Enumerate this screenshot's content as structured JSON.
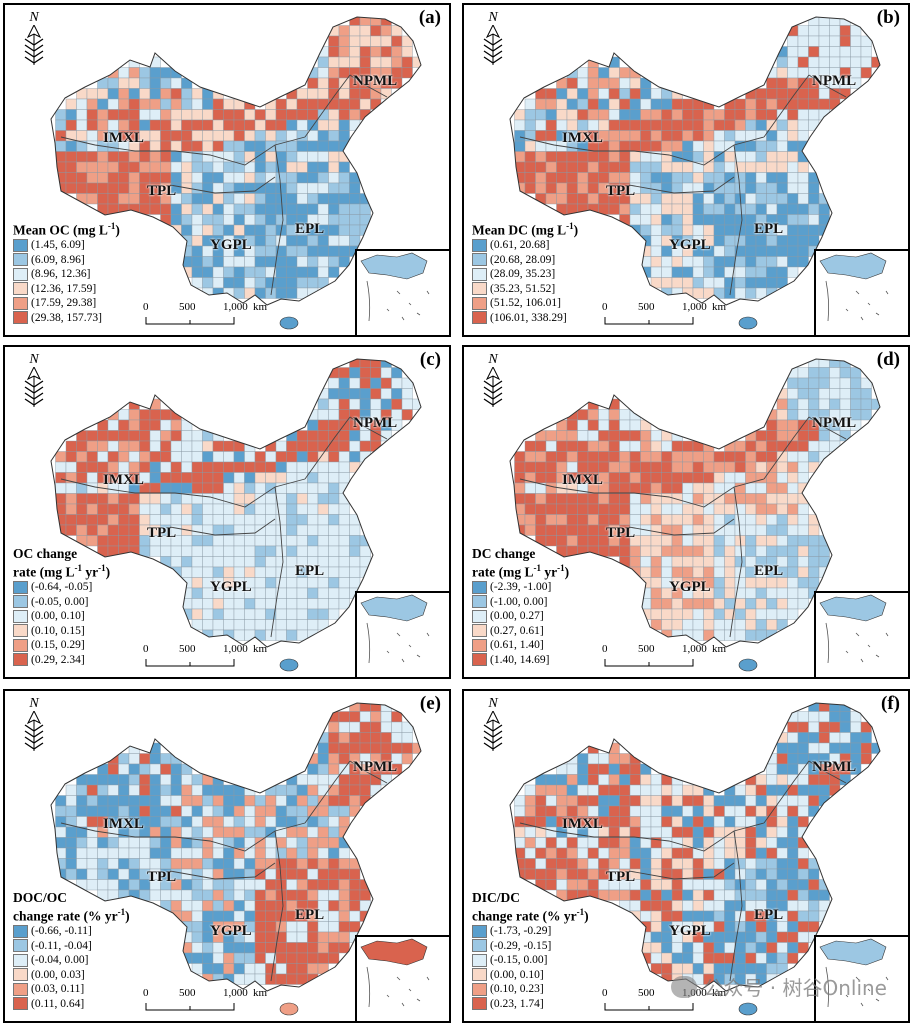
{
  "colors": {
    "blue_dark": "#5a9fcd",
    "blue_mid": "#9cc7e3",
    "blue_light": "#deeef7",
    "red_light": "#f9d9c8",
    "red_mid": "#ef9f86",
    "red_dark": "#d9634e",
    "boundary": "#333333"
  },
  "north_symbol": {
    "letter": "N",
    "icon": "north-arrow-icon"
  },
  "scale_bar": {
    "ticks": [
      "0",
      "500",
      "1,000"
    ],
    "unit": "km"
  },
  "regions": [
    "IMXL",
    "NPML",
    "TPL",
    "YGPL",
    "EPL"
  ],
  "panels": [
    {
      "id": "a",
      "label": "(a)",
      "legend_title": [
        "Mean OC (mg L",
        "-1",
        ")"
      ],
      "classes": [
        "(1.45, 6.09]",
        "(6.09, 8.96]",
        "(8.96, 12.36]",
        "(12.36, 17.59]",
        "(17.59, 29.38]",
        "(29.38, 157.73]"
      ]
    },
    {
      "id": "b",
      "label": "(b)",
      "legend_title": [
        "Mean DC (mg L",
        "-1",
        ")"
      ],
      "classes": [
        "(0.61, 20.68]",
        "(20.68, 28.09]",
        "(28.09, 35.23]",
        "(35.23, 51.52]",
        "(51.52, 106.01]",
        "(106.01, 338.29]"
      ]
    },
    {
      "id": "c",
      "label": "(c)",
      "legend_title": [
        "OC change",
        "rate (mg L",
        "-1",
        " yr",
        "-1",
        ")"
      ],
      "classes": [
        "(-0.64, -0.05]",
        "(-0.05, 0.00]",
        "(0.00, 0.10]",
        "(0.10, 0.15]",
        "(0.15, 0.29]",
        "(0.29, 2.34]"
      ]
    },
    {
      "id": "d",
      "label": "(d)",
      "legend_title": [
        "DC change",
        "rate (mg L",
        "-1",
        " yr",
        "-1",
        ")"
      ],
      "classes": [
        "(-2.39, -1.00]",
        "(-1.00, 0.00]",
        "(0.00, 0.27]",
        "(0.27, 0.61]",
        "(0.61, 1.40]",
        "(1.40, 14.69]"
      ]
    },
    {
      "id": "e",
      "label": "(e)",
      "legend_title": [
        "DOC/OC",
        "change rate (% yr",
        "-1",
        ")"
      ],
      "classes": [
        "(-0.66, -0.11]",
        "(-0.11, -0.04]",
        "(-0.04, 0.00]",
        "(0.00, 0.03]",
        "(0.03, 0.11]",
        "(0.11, 0.64]"
      ]
    },
    {
      "id": "f",
      "label": "(f)",
      "legend_title": [
        "DIC/DC",
        "change rate (% yr",
        "-1",
        ")"
      ],
      "classes": [
        "(-1.73, -0.29]",
        "(-0.29, -0.15]",
        "(-0.15, 0.00]",
        "(0.00, 0.10]",
        "(0.10, 0.23]",
        "(0.23, 1.74]"
      ]
    }
  ],
  "watermark": "公众号 · 树谷Online"
}
